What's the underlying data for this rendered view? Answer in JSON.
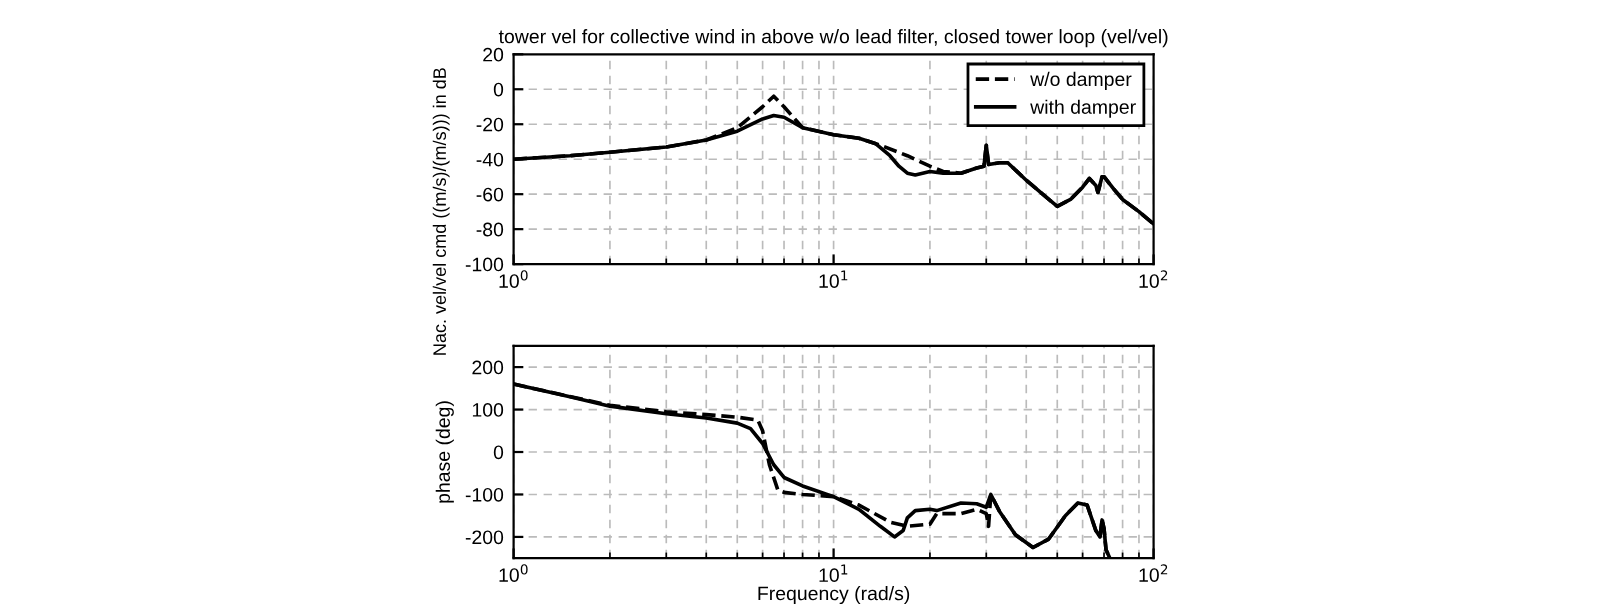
{
  "chart_data": [
    {
      "type": "line",
      "title": "tower vel for collective wind in above w/o lead filter, closed tower loop (vel/vel)",
      "ylabel": "Nac. vel/vel cmd ((m/s)/(m/s))) in dB",
      "log": "x",
      "xlim": [
        1,
        100
      ],
      "xticks": [
        {
          "value": 1,
          "label": "10$^{0}$"
        },
        {
          "value": 10,
          "label": "10$^{1}$"
        },
        {
          "value": 100,
          "label": "10$^{2}$"
        }
      ],
      "ylim": [
        -100,
        20
      ],
      "yticks": [
        -100,
        -80,
        -60,
        -40,
        -20,
        0,
        20
      ],
      "grid": true,
      "legend": "top right",
      "series": [
        {
          "name": "w/o damper",
          "color": "#000000",
          "line_style": "dashed",
          "x": [
            1,
            1.5,
            2,
            3,
            4,
            5,
            6,
            6.5,
            7,
            8,
            10,
            12,
            14,
            17,
            20,
            22,
            25,
            28,
            29.5,
            30,
            30.5,
            33,
            35,
            40,
            45,
            50,
            55,
            60,
            63,
            66,
            67,
            69,
            70,
            75,
            80,
            90,
            100
          ],
          "values": [
            -40,
            -38,
            -36,
            -33,
            -29,
            -22,
            -10,
            -4,
            -10,
            -22,
            -26,
            -28,
            -32,
            -38,
            -44,
            -47,
            -48,
            -45,
            -44,
            -32,
            -43,
            -42,
            -42,
            -52,
            -60,
            -67,
            -63,
            -56,
            -51,
            -55,
            -59,
            -50,
            -50,
            -57,
            -63,
            -70,
            -77
          ]
        },
        {
          "name": "with damper",
          "color": "#000000",
          "line_style": "solid",
          "x": [
            1,
            1.5,
            2,
            3,
            4,
            5,
            6,
            6.5,
            7,
            8,
            10,
            12,
            13.5,
            15,
            16,
            17,
            18,
            20,
            22,
            25,
            28,
            29.5,
            30,
            30.5,
            33,
            35,
            40,
            45,
            50,
            55,
            60,
            63,
            66,
            67,
            69,
            70,
            75,
            80,
            90,
            100
          ],
          "values": [
            -40,
            -38,
            -36,
            -33,
            -29,
            -24,
            -17,
            -15,
            -16,
            -22,
            -26,
            -28,
            -31,
            -38,
            -44,
            -48,
            -49,
            -47,
            -48,
            -48,
            -45,
            -44,
            -32,
            -43,
            -42,
            -42,
            -52,
            -60,
            -67,
            -63,
            -56,
            -51,
            -55,
            -59,
            -50,
            -50,
            -57,
            -63,
            -70,
            -77
          ]
        }
      ]
    },
    {
      "type": "line",
      "xlabel": "Frequency (rad/s)",
      "ylabel": "phase (deg)",
      "log": "x",
      "xlim": [
        1,
        100
      ],
      "xticks": [
        {
          "value": 1,
          "label": "10$^{0}$"
        },
        {
          "value": 10,
          "label": "10$^{1}$"
        },
        {
          "value": 100,
          "label": "10$^{2}$"
        }
      ],
      "ylim": [
        -250,
        250
      ],
      "yticks": [
        -200,
        -100,
        0,
        100,
        200
      ],
      "grid": true,
      "series": [
        {
          "color": "#000000",
          "line_style": "dashed",
          "x": [
            1,
            2,
            3,
            4,
            5,
            5.8,
            6,
            6.3,
            6.7,
            7,
            8,
            10,
            12,
            15,
            17,
            20,
            21,
            25,
            28,
            30,
            30.5,
            31,
            33,
            37,
            42,
            47,
            53,
            58,
            62,
            66,
            68,
            69,
            70,
            71,
            72.5
          ],
          "values": [
            160,
            110,
            95,
            88,
            82,
            75,
            50,
            -30,
            -90,
            -95,
            -100,
            -105,
            -125,
            -165,
            -175,
            -170,
            -145,
            -145,
            -135,
            -145,
            -175,
            -100,
            -140,
            -195,
            -225,
            -205,
            -150,
            -120,
            -125,
            -185,
            -200,
            -160,
            -180,
            -230,
            -245
          ]
        },
        {
          "color": "#000000",
          "line_style": "solid",
          "x": [
            1,
            1.5,
            2,
            3,
            4,
            5,
            5.5,
            6,
            6.5,
            7,
            8,
            10,
            12,
            14,
            15.5,
            16.5,
            17,
            18,
            20,
            21,
            25,
            28,
            30,
            31,
            33,
            37,
            42,
            47,
            53,
            58,
            62,
            66,
            68,
            69,
            70,
            71,
            72.5
          ],
          "values": [
            160,
            130,
            108,
            90,
            80,
            68,
            55,
            20,
            -30,
            -60,
            -80,
            -105,
            -135,
            -175,
            -200,
            -185,
            -155,
            -138,
            -135,
            -138,
            -120,
            -122,
            -130,
            -100,
            -140,
            -195,
            -225,
            -205,
            -150,
            -120,
            -125,
            -185,
            -200,
            -160,
            -180,
            -230,
            -245
          ]
        }
      ]
    }
  ]
}
